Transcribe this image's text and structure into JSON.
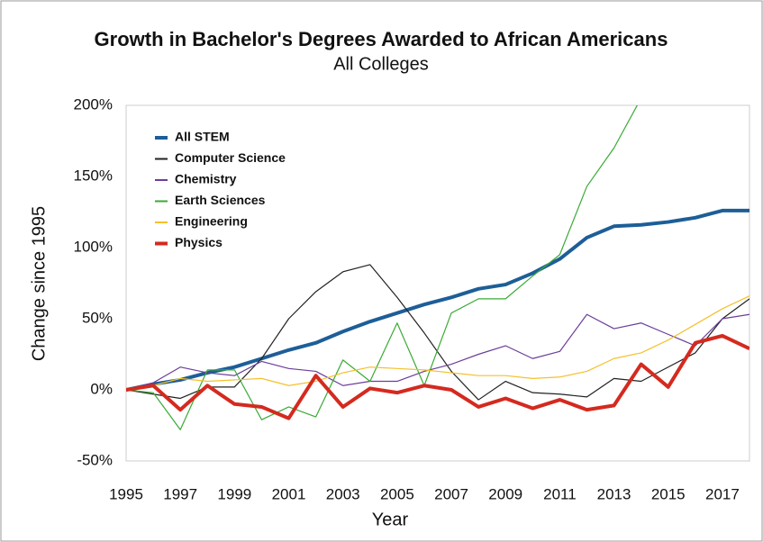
{
  "chart_data": {
    "type": "line",
    "title": "Growth in Bachelor's Degrees Awarded to African Americans",
    "subtitle": "All Colleges",
    "x_label": "Year",
    "y_label": "Change since 1995",
    "x": [
      1995,
      1996,
      1997,
      1998,
      1999,
      2000,
      2001,
      2002,
      2003,
      2004,
      2005,
      2006,
      2007,
      2008,
      2009,
      2010,
      2011,
      2012,
      2013,
      2014,
      2015,
      2016,
      2017,
      2018
    ],
    "xlim": [
      1995,
      2018
    ],
    "xticks": [
      1995,
      1997,
      1999,
      2001,
      2003,
      2005,
      2007,
      2009,
      2011,
      2013,
      2015,
      2017
    ],
    "ylim": [
      -50,
      200
    ],
    "yticks": [
      {
        "value": -50,
        "label": "-50%"
      },
      {
        "value": 0,
        "label": "0%"
      },
      {
        "value": 50,
        "label": "50%"
      },
      {
        "value": 100,
        "label": "100%"
      },
      {
        "value": 150,
        "label": "150%"
      },
      {
        "value": 200,
        "label": "200%"
      }
    ],
    "grid": false,
    "legend": "upper left",
    "series": [
      {
        "name": "All STEM",
        "color": "#1d5e98",
        "line_width": 4,
        "values": [
          0,
          4,
          7,
          12,
          16,
          22,
          28,
          33,
          41,
          48,
          54,
          60,
          65,
          71,
          74,
          82,
          92,
          107,
          115,
          116,
          118,
          121,
          126,
          126
        ]
      },
      {
        "name": "Computer Science",
        "color": "#222222",
        "line_width": 1.2,
        "values": [
          0,
          -3,
          -6,
          2,
          2,
          22,
          50,
          69,
          83,
          88,
          65,
          40,
          13,
          -7,
          6,
          -2,
          -3,
          -5,
          8,
          6,
          16,
          26,
          50,
          64
        ]
      },
      {
        "name": "Chemistry",
        "color": "#6a3d9a",
        "line_width": 1.2,
        "values": [
          0,
          5,
          16,
          12,
          10,
          20,
          15,
          13,
          3,
          6,
          6,
          13,
          18,
          25,
          31,
          22,
          27,
          53,
          43,
          47,
          39,
          31,
          50,
          53
        ]
      },
      {
        "name": "Earth Sciences",
        "color": "#3aaa35",
        "line_width": 1.2,
        "values": [
          0,
          -2,
          -28,
          14,
          14,
          -21,
          -12,
          -19,
          21,
          6,
          47,
          3,
          54,
          64,
          64,
          80,
          95,
          143,
          170,
          205,
          null,
          null,
          null,
          null
        ]
      },
      {
        "name": "Engineering",
        "color": "#f5c02c",
        "line_width": 1.2,
        "values": [
          0,
          3,
          8,
          6,
          7,
          8,
          3,
          6,
          12,
          16,
          15,
          14,
          12,
          10,
          10,
          8,
          9,
          13,
          22,
          26,
          35,
          46,
          57,
          66
        ]
      },
      {
        "name": "Physics",
        "color": "#d42a1f",
        "line_width": 4,
        "values": [
          0,
          3,
          -14,
          3,
          -10,
          -12,
          -20,
          10,
          -12,
          1,
          -2,
          3,
          0,
          -12,
          -6,
          -13,
          -7,
          -14,
          -11,
          18,
          2,
          33,
          38,
          29
        ]
      }
    ]
  }
}
